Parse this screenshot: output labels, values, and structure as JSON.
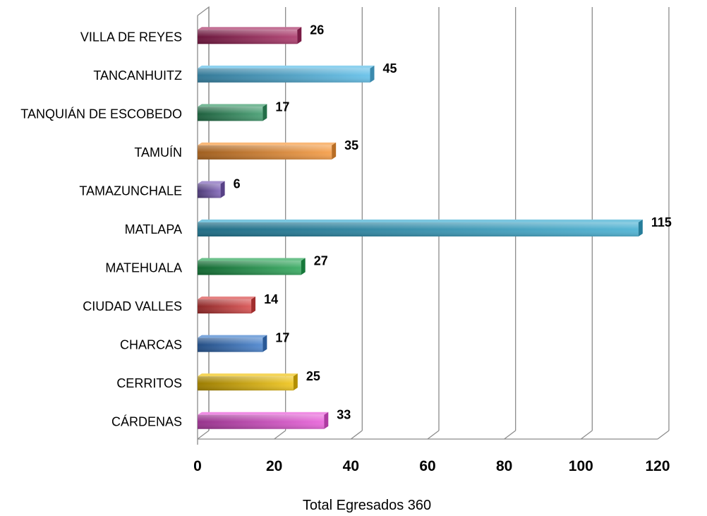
{
  "chart_data": {
    "type": "bar",
    "orientation": "horizontal",
    "categories": [
      "VILLA DE REYES",
      "TANCANHUITZ",
      "TANQUIÁN DE ESCOBEDO",
      "TAMUÍN",
      "TAMAZUNCHALE",
      "MATLAPA",
      "MATEHUALA",
      "CIUDAD VALLES",
      "CHARCAS",
      "CERRITOS",
      "CÁRDENAS"
    ],
    "values": [
      26,
      45,
      17,
      35,
      6,
      115,
      27,
      14,
      17,
      25,
      33
    ],
    "value_labels": [
      "26",
      "45",
      "17",
      "35",
      "6",
      "115",
      "27",
      "14",
      "17",
      "25",
      "33"
    ],
    "colors": [
      "#a3245c",
      "#4fb8e6",
      "#2e9360",
      "#f59130",
      "#7456b2",
      "#33a7cd",
      "#1da04d",
      "#d63c3c",
      "#3677c9",
      "#eebe00",
      "#e64fd6"
    ],
    "xlabel": "Total Egresados 360",
    "ylabel": "",
    "xlim": [
      0,
      120
    ],
    "x_ticks": [
      "0",
      "20",
      "40",
      "60",
      "80",
      "100",
      "120"
    ],
    "grid": true,
    "legend": "none"
  }
}
